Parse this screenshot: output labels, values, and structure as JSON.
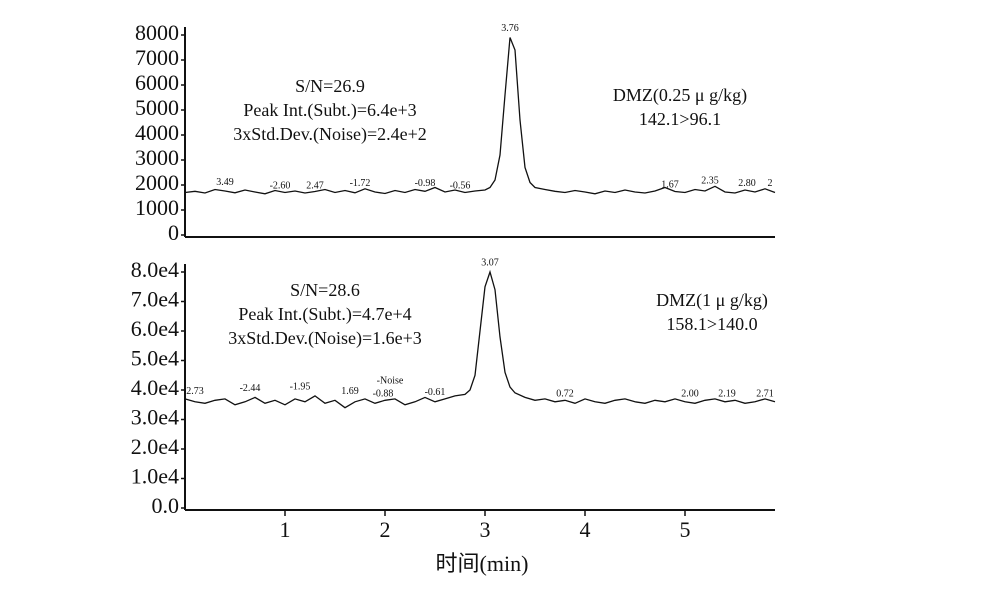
{
  "chart_data": [
    {
      "type": "line",
      "color": "#111111",
      "x": [
        0,
        0.1,
        0.2,
        0.3,
        0.4,
        0.5,
        0.6,
        0.7,
        0.8,
        0.9,
        1,
        1.1,
        1.2,
        1.3,
        1.4,
        1.5,
        1.6,
        1.7,
        1.8,
        1.9,
        2,
        2.1,
        2.2,
        2.3,
        2.4,
        2.5,
        2.6,
        2.7,
        2.8,
        2.9,
        3,
        3.05,
        3.1,
        3.15,
        3.2,
        3.25,
        3.3,
        3.35,
        3.4,
        3.45,
        3.5,
        3.6,
        3.7,
        3.8,
        3.9,
        4,
        4.1,
        4.2,
        4.3,
        4.4,
        4.5,
        4.6,
        4.7,
        4.8,
        4.9,
        5,
        5.1,
        5.2,
        5.3,
        5.4,
        5.5,
        5.6,
        5.7,
        5.8,
        5.9
      ],
      "values": [
        1700,
        1750,
        1680,
        1820,
        1760,
        1690,
        1800,
        1720,
        1650,
        1780,
        1700,
        1760,
        1680,
        1740,
        1820,
        1700,
        1780,
        1690,
        1850,
        1720,
        1660,
        1780,
        1700,
        1820,
        1750,
        1900,
        1720,
        1800,
        1700,
        1760,
        1800,
        1900,
        2200,
        3200,
        5600,
        7900,
        7400,
        4600,
        2700,
        2100,
        1900,
        1820,
        1750,
        1700,
        1780,
        1720,
        1650,
        1760,
        1700,
        1800,
        1720,
        1680,
        1760,
        1900,
        1740,
        1700,
        1820,
        1760,
        1950,
        1720,
        1680,
        1800,
        1720,
        1850,
        1700
      ],
      "xlim": [
        0,
        5.9
      ],
      "ylim": [
        0,
        8000
      ],
      "yticks": [
        0,
        1000,
        2000,
        3000,
        4000,
        5000,
        6000,
        7000,
        8000
      ],
      "notes": [
        "S/N=26.9",
        "Peak Int.(Subt.)=6.4e+3",
        "3xStd.Dev.(Noise)=2.4e+2"
      ],
      "compound": [
        "DMZ(0.25 μ g/kg)",
        "142.1>96.1"
      ],
      "annotations": [
        {
          "text": "3.76",
          "x": 3.25,
          "y": 8250
        },
        {
          "text": "3.49",
          "x": 0.4,
          "y": 2100
        },
        {
          "text": "-2.60",
          "x": 0.95,
          "y": 1950
        },
        {
          "text": "2.47",
          "x": 1.3,
          "y": 1950
        },
        {
          "text": "-1.72",
          "x": 1.75,
          "y": 2050
        },
        {
          "text": "-0.98",
          "x": 2.4,
          "y": 2050
        },
        {
          "text": "-0.56",
          "x": 2.75,
          "y": 1950
        },
        {
          "text": "1.67",
          "x": 4.85,
          "y": 2000
        },
        {
          "text": "2.35",
          "x": 5.25,
          "y": 2150
        },
        {
          "text": "2.80",
          "x": 5.62,
          "y": 2050
        },
        {
          "text": "2",
          "x": 5.85,
          "y": 2050
        }
      ]
    },
    {
      "type": "line",
      "color": "#111111",
      "x": [
        0,
        0.1,
        0.2,
        0.3,
        0.4,
        0.5,
        0.6,
        0.7,
        0.8,
        0.9,
        1,
        1.1,
        1.2,
        1.3,
        1.4,
        1.5,
        1.6,
        1.7,
        1.8,
        1.9,
        2,
        2.1,
        2.2,
        2.3,
        2.4,
        2.5,
        2.6,
        2.7,
        2.8,
        2.85,
        2.9,
        2.95,
        3.0,
        3.05,
        3.1,
        3.15,
        3.2,
        3.25,
        3.3,
        3.4,
        3.5,
        3.6,
        3.7,
        3.8,
        3.9,
        4,
        4.1,
        4.2,
        4.3,
        4.4,
        4.5,
        4.6,
        4.7,
        4.8,
        4.9,
        5,
        5.1,
        5.2,
        5.3,
        5.4,
        5.5,
        5.6,
        5.7,
        5.8,
        5.9
      ],
      "values": [
        37000,
        36000,
        35500,
        36500,
        37000,
        35000,
        36000,
        37500,
        35500,
        36500,
        35000,
        37000,
        36000,
        38000,
        35500,
        36500,
        34000,
        36000,
        37000,
        35500,
        36500,
        37000,
        35000,
        36000,
        37500,
        36000,
        37000,
        38000,
        38500,
        40000,
        45000,
        60000,
        75000,
        80000,
        74000,
        58000,
        46000,
        41000,
        39000,
        37500,
        36500,
        37000,
        36000,
        36500,
        35500,
        37000,
        36000,
        35500,
        36500,
        37000,
        36000,
        35500,
        36500,
        36000,
        37000,
        36000,
        35500,
        36500,
        37000,
        36000,
        36500,
        35500,
        36000,
        37000,
        36000
      ],
      "xlim": [
        0,
        5.9
      ],
      "ylim": [
        0,
        80000
      ],
      "xticks": [
        1,
        2,
        3,
        4,
        5
      ],
      "xlabel": "时间(min)",
      "yticks": [
        {
          "value": 0,
          "label": "0.0"
        },
        {
          "value": 10000,
          "label": "1.0e4"
        },
        {
          "value": 20000,
          "label": "2.0e4"
        },
        {
          "value": 30000,
          "label": "3.0e4"
        },
        {
          "value": 40000,
          "label": "4.0e4"
        },
        {
          "value": 50000,
          "label": "5.0e4"
        },
        {
          "value": 60000,
          "label": "6.0e4"
        },
        {
          "value": 70000,
          "label": "7.0e4"
        },
        {
          "value": 80000,
          "label": "8.0e4"
        }
      ],
      "notes": [
        "S/N=28.6",
        "Peak Int.(Subt.)=4.7e+4",
        "3xStd.Dev.(Noise)=1.6e+3"
      ],
      "compound": [
        "DMZ(1 μ g/kg)",
        "158.1>140.0"
      ],
      "annotations": [
        {
          "text": "3.07",
          "x": 3.05,
          "y": 83000
        },
        {
          "text": "2.73",
          "x": 0.1,
          "y": 39500
        },
        {
          "text": "-2.44",
          "x": 0.65,
          "y": 40500
        },
        {
          "text": "-1.95",
          "x": 1.15,
          "y": 41000
        },
        {
          "text": "1.69",
          "x": 1.65,
          "y": 39500
        },
        {
          "text": "-Noise",
          "x": 2.05,
          "y": 43000
        },
        {
          "text": "-0.88",
          "x": 1.98,
          "y": 38500
        },
        {
          "text": "-0.61",
          "x": 2.5,
          "y": 39000
        },
        {
          "text": "0.72",
          "x": 3.8,
          "y": 38500
        },
        {
          "text": "2.00",
          "x": 5.05,
          "y": 38500
        },
        {
          "text": "2.19",
          "x": 5.42,
          "y": 38500
        },
        {
          "text": "2.71",
          "x": 5.8,
          "y": 38500
        }
      ]
    }
  ]
}
